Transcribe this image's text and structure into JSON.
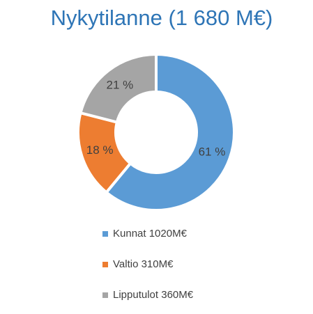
{
  "chart_data": {
    "type": "donut",
    "title": "Nykytilanne (1 680 M€)",
    "categories": [
      "Kunnat 1020M€",
      "Valtio 310M€",
      "Lipputulot 360M€"
    ],
    "values": [
      61,
      18,
      21
    ],
    "value_labels": [
      "61 %",
      "18 %",
      "21 %"
    ],
    "colors": [
      "#5b9bd5",
      "#ed7d31",
      "#a5a5a5"
    ]
  }
}
